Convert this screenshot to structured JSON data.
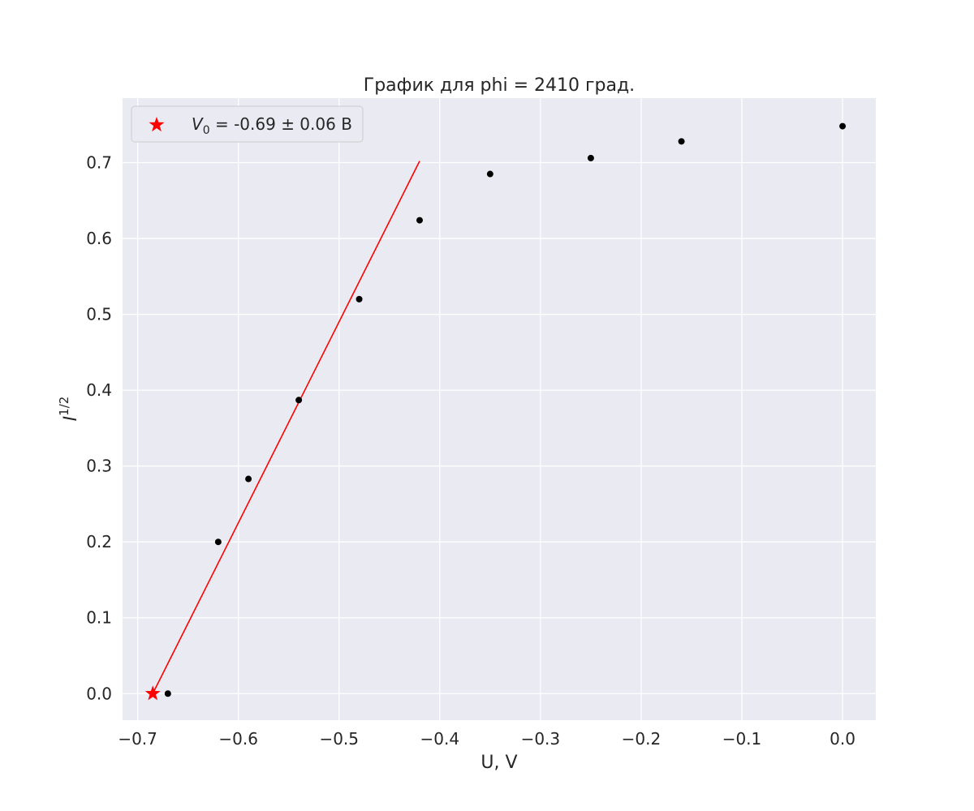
{
  "chart_data": {
    "type": "scatter",
    "title": "График для phi = 2410 град.",
    "xlabel": "U, V",
    "ylabel": {
      "base": "I",
      "sup": "1/2"
    },
    "xlim": [
      -0.715,
      0.033
    ],
    "ylim": [
      -0.035,
      0.785
    ],
    "xticks": [
      -0.7,
      -0.6,
      -0.5,
      -0.4,
      -0.3,
      -0.2,
      -0.1,
      0.0
    ],
    "xtick_labels": [
      "−0.7",
      "−0.6",
      "−0.5",
      "−0.4",
      "−0.3",
      "−0.2",
      "−0.1",
      "0.0"
    ],
    "yticks": [
      0.0,
      0.1,
      0.2,
      0.3,
      0.4,
      0.5,
      0.6,
      0.7
    ],
    "ytick_labels": [
      "0.0",
      "0.1",
      "0.2",
      "0.3",
      "0.4",
      "0.5",
      "0.6",
      "0.7"
    ],
    "grid": true,
    "legend_placement": "top-left",
    "series": [
      {
        "kind": "points",
        "color": "#000000",
        "x": [
          -0.67,
          -0.62,
          -0.59,
          -0.54,
          -0.48,
          -0.42,
          -0.35,
          -0.25,
          -0.16,
          0.0
        ],
        "y": [
          0.0,
          0.2,
          0.283,
          0.387,
          0.52,
          0.624,
          0.685,
          0.706,
          0.728,
          0.748
        ]
      },
      {
        "kind": "line",
        "color": "#ff0000",
        "x": [
          -0.685,
          -0.42
        ],
        "y": [
          0.0,
          0.702
        ]
      },
      {
        "kind": "marker",
        "marker": "star",
        "color": "#ff0000",
        "x": [
          -0.685
        ],
        "y": [
          0.0
        ],
        "legend": {
          "var": "V",
          "sub": "0",
          "rest": " = -0.69 ± 0.06 В"
        }
      }
    ]
  },
  "colors": {
    "plot_background": "#eaeaf2",
    "grid": "#ffffff",
    "text": "#262626"
  }
}
